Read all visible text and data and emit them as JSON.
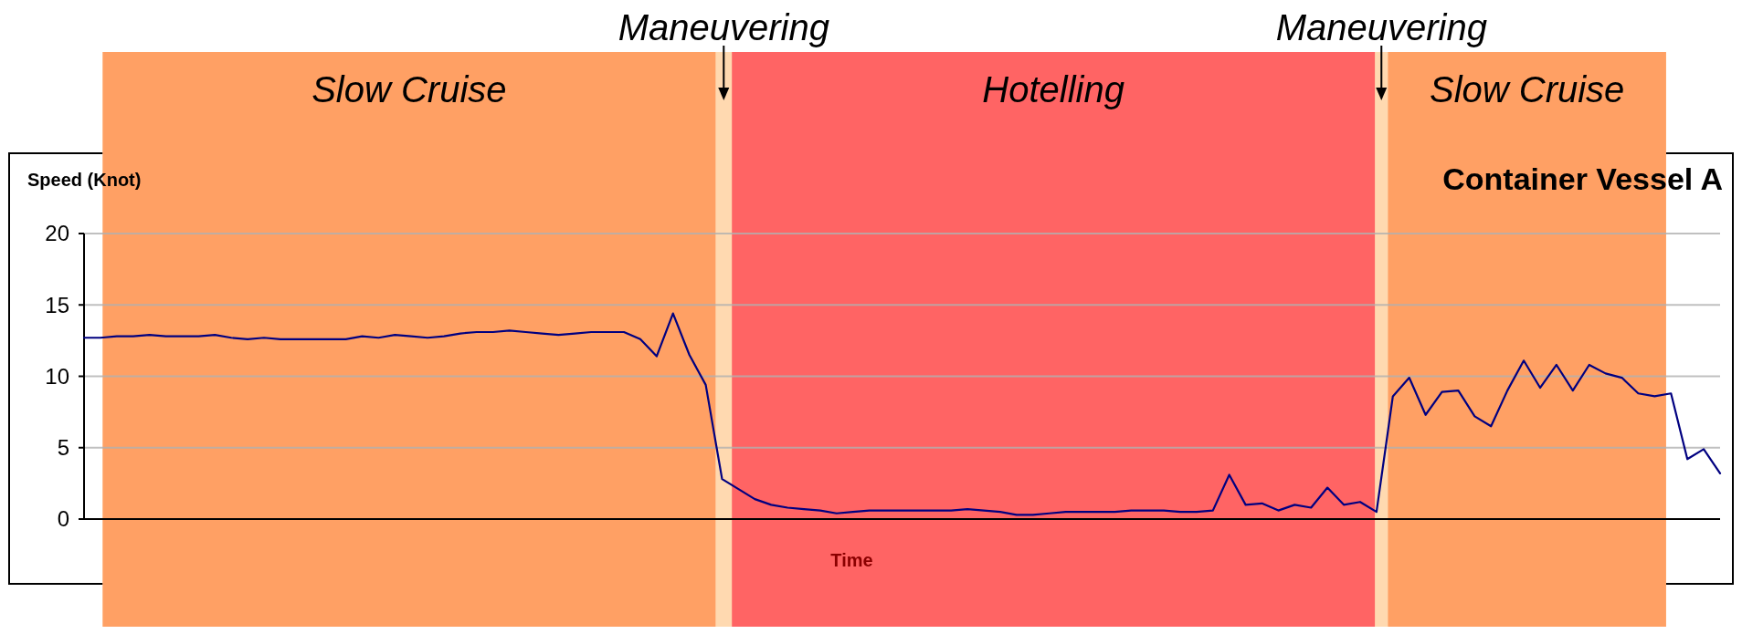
{
  "chart_data": {
    "type": "line",
    "title": "Container Vessel A",
    "ylabel": "Speed (Knot)",
    "xlabel": "Time",
    "categories": [
      null,
      null,
      null,
      null,
      null,
      null,
      null,
      null,
      null,
      null,
      null,
      null,
      null,
      null,
      null,
      null,
      null,
      null,
      null,
      null,
      null,
      null,
      null,
      null,
      null,
      null,
      null,
      null,
      null,
      null,
      null,
      null,
      null,
      null,
      null,
      null,
      null,
      null,
      null,
      null,
      null,
      null,
      null,
      null,
      null,
      null,
      null,
      null,
      null,
      null,
      null,
      null,
      null,
      null,
      null,
      null,
      null,
      null,
      null,
      null,
      null,
      null,
      null,
      null,
      null,
      null,
      null,
      null,
      null,
      null,
      null,
      null,
      null,
      null,
      null,
      null,
      null,
      null,
      null,
      null,
      null,
      null,
      null,
      null,
      null,
      null,
      null,
      null,
      null,
      null,
      null,
      null,
      null,
      null,
      null,
      null,
      null,
      null,
      null,
      null,
      null
    ],
    "ylim": [
      0,
      20
    ],
    "yticks": [
      0,
      5,
      10,
      15,
      20
    ],
    "grid": "y",
    "marker": "none",
    "line_style": "solid",
    "series": [
      {
        "color": "#000080",
        "values": [
          12.7,
          12.7,
          12.8,
          12.8,
          12.9,
          12.8,
          12.8,
          12.8,
          12.9,
          12.7,
          12.6,
          12.7,
          12.6,
          12.6,
          12.6,
          12.6,
          12.6,
          12.8,
          12.7,
          12.9,
          12.8,
          12.7,
          12.8,
          13.0,
          13.1,
          13.1,
          13.2,
          13.1,
          13.0,
          12.9,
          13.0,
          13.1,
          13.1,
          13.1,
          12.6,
          11.4,
          14.4,
          11.5,
          9.4,
          2.8,
          2.1,
          1.4,
          1.0,
          0.8,
          0.7,
          0.6,
          0.4,
          0.5,
          0.6,
          0.6,
          0.6,
          0.6,
          0.6,
          0.6,
          0.7,
          0.6,
          0.5,
          0.3,
          0.3,
          0.4,
          0.5,
          0.5,
          0.5,
          0.5,
          0.6,
          0.6,
          0.6,
          0.5,
          0.5,
          0.6,
          3.1,
          1.0,
          1.1,
          0.6,
          1.0,
          0.8,
          2.2,
          1.0,
          1.2,
          0.5,
          8.6,
          9.9,
          7.3,
          8.9,
          9.0,
          7.2,
          6.5,
          9.0,
          11.1,
          9.2,
          10.8,
          9.0,
          10.8,
          10.2,
          9.9,
          8.8,
          8.6,
          8.8,
          4.2,
          4.9,
          3.2
        ]
      }
    ],
    "annotations": [
      "Slow Cruise",
      "Maneuvering",
      "Hotelling",
      "Maneuvering",
      "Slow Cruise"
    ]
  }
}
